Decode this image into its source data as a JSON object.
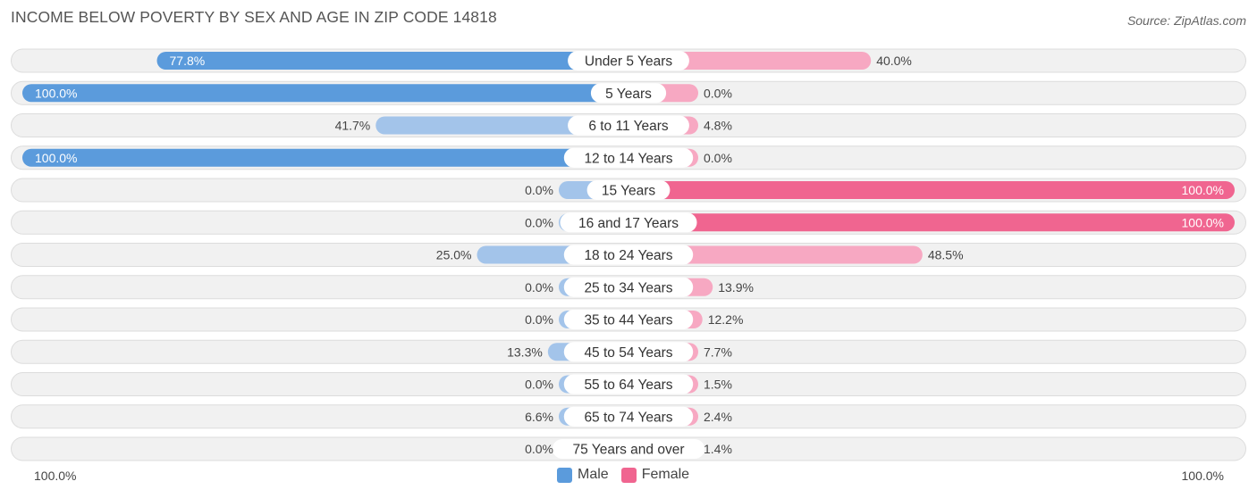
{
  "title": "INCOME BELOW POVERTY BY SEX AND AGE IN ZIP CODE 14818",
  "source": "Source: ZipAtlas.com",
  "axis_left_label": "100.0%",
  "axis_right_label": "100.0%",
  "legend": {
    "male_label": "Male",
    "female_label": "Female"
  },
  "colors": {
    "male_strong": "#5b9bdc",
    "male_light": "#a3c4ea",
    "female_strong": "#f06590",
    "female_light": "#f7a8c2",
    "row_bg": "#f1f1f1",
    "row_border": "#dcdcdc"
  },
  "chart_data": {
    "type": "bar",
    "orientation": "diverging-horizontal",
    "title": "INCOME BELOW POVERTY BY SEX AND AGE IN ZIP CODE 14818",
    "xlim": [
      -100,
      100
    ],
    "categories": [
      "Under 5 Years",
      "5 Years",
      "6 to 11 Years",
      "12 to 14 Years",
      "15 Years",
      "16 and 17 Years",
      "18 to 24 Years",
      "25 to 34 Years",
      "35 to 44 Years",
      "45 to 54 Years",
      "55 to 64 Years",
      "65 to 74 Years",
      "75 Years and over"
    ],
    "series": [
      {
        "name": "Male",
        "values": [
          77.8,
          100.0,
          41.7,
          100.0,
          0.0,
          0.0,
          25.0,
          0.0,
          0.0,
          13.3,
          0.0,
          6.6,
          0.0
        ],
        "labels": [
          "77.8%",
          "100.0%",
          "41.7%",
          "100.0%",
          "0.0%",
          "0.0%",
          "25.0%",
          "0.0%",
          "0.0%",
          "13.3%",
          "0.0%",
          "6.6%",
          "0.0%"
        ]
      },
      {
        "name": "Female",
        "values": [
          40.0,
          0.0,
          4.8,
          0.0,
          100.0,
          100.0,
          48.5,
          13.9,
          12.2,
          7.7,
          1.5,
          2.4,
          1.4
        ],
        "labels": [
          "40.0%",
          "0.0%",
          "4.8%",
          "0.0%",
          "100.0%",
          "100.0%",
          "48.5%",
          "13.9%",
          "12.2%",
          "7.7%",
          "1.5%",
          "2.4%",
          "1.4%"
        ]
      }
    ],
    "legend_position": "bottom-center"
  }
}
